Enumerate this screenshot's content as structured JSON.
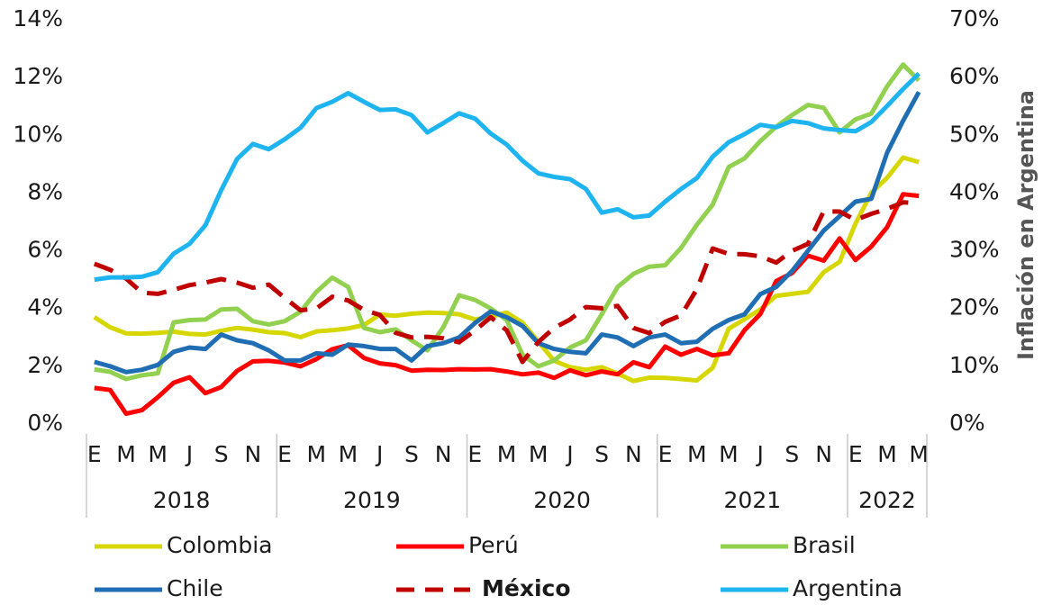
{
  "chart_data": {
    "type": "line",
    "y2_label": "Inflación  en Argentina",
    "categories": [
      "E",
      null,
      "M",
      null,
      "M",
      null,
      "J",
      null,
      "S",
      null,
      "N",
      null,
      "E",
      null,
      "M",
      null,
      "M",
      null,
      "J",
      null,
      "S",
      null,
      "N",
      null,
      "E",
      null,
      "M",
      null,
      "M",
      null,
      "J",
      null,
      "S",
      null,
      "N",
      null,
      "E",
      null,
      "M",
      null,
      "M",
      null,
      "J",
      null,
      "S",
      null,
      "N",
      null,
      "E",
      null,
      "M",
      null,
      "M"
    ],
    "category_groups": [
      "2018",
      "2019",
      "2020",
      "2021",
      "2022"
    ],
    "ylim": [
      0,
      14
    ],
    "yticks": [
      {
        "value": 0,
        "label": "0%"
      },
      {
        "value": 2,
        "label": "2%"
      },
      {
        "value": 4,
        "label": "4%"
      },
      {
        "value": 6,
        "label": "6%"
      },
      {
        "value": 8,
        "label": "8%"
      },
      {
        "value": 10,
        "label": "10%"
      },
      {
        "value": 12,
        "label": "12%"
      },
      {
        "value": 14,
        "label": "14%"
      }
    ],
    "y2lim": [
      0,
      70
    ],
    "y2ticks": [
      {
        "value": 0,
        "label": "0%"
      },
      {
        "value": 10,
        "label": "10%"
      },
      {
        "value": 20,
        "label": "20%"
      },
      {
        "value": 30,
        "label": "30%"
      },
      {
        "value": 40,
        "label": "40%"
      },
      {
        "value": 50,
        "label": "50%"
      },
      {
        "value": 60,
        "label": "60%"
      },
      {
        "value": 70,
        "label": "70%"
      }
    ],
    "grid": false,
    "legend": "bottom",
    "series": [
      {
        "name": "Colombia",
        "color": "#d6d600",
        "line_style": "solid",
        "values": [
          3.7,
          3.35,
          3.14,
          3.13,
          3.16,
          3.2,
          3.12,
          3.1,
          3.23,
          3.33,
          3.27,
          3.18,
          3.15,
          3.01,
          3.21,
          3.25,
          3.31,
          3.43,
          3.79,
          3.75,
          3.82,
          3.86,
          3.84,
          3.8,
          3.62,
          3.72,
          3.86,
          3.51,
          2.85,
          2.19,
          1.97,
          1.88,
          1.97,
          1.75,
          1.49,
          1.61,
          1.6,
          1.56,
          1.51,
          1.95,
          3.3,
          3.63,
          3.97,
          4.44,
          4.51,
          4.58,
          5.26,
          5.62,
          6.94,
          8.01,
          8.53,
          9.23,
          9.07
        ]
      },
      {
        "name": "Perú",
        "color": "#ff0000",
        "line_style": "solid",
        "values": [
          1.25,
          1.18,
          0.36,
          0.48,
          0.93,
          1.43,
          1.62,
          1.07,
          1.28,
          1.84,
          2.17,
          2.19,
          2.13,
          2.0,
          2.25,
          2.59,
          2.73,
          2.29,
          2.1,
          2.04,
          1.85,
          1.88,
          1.87,
          1.9,
          1.89,
          1.9,
          1.82,
          1.72,
          1.78,
          1.6,
          1.86,
          1.69,
          1.82,
          1.72,
          2.14,
          1.97,
          2.68,
          2.4,
          2.6,
          2.38,
          2.45,
          3.25,
          3.81,
          4.95,
          5.23,
          5.83,
          5.66,
          6.43,
          5.68,
          6.15,
          6.82,
          7.96,
          7.9
        ]
      },
      {
        "name": "Brasil",
        "color": "#92d050",
        "line_style": "solid",
        "values": [
          1.89,
          1.81,
          1.56,
          1.69,
          1.76,
          3.52,
          3.6,
          3.62,
          3.97,
          3.99,
          3.56,
          3.45,
          3.56,
          3.89,
          4.58,
          5.07,
          4.75,
          3.33,
          3.18,
          3.28,
          2.9,
          2.55,
          3.35,
          4.46,
          4.3,
          4.0,
          3.6,
          2.4,
          2.0,
          2.2,
          2.65,
          2.9,
          3.8,
          4.75,
          5.2,
          5.45,
          5.5,
          6.1,
          6.9,
          7.6,
          8.9,
          9.2,
          9.8,
          10.3,
          10.7,
          11.05,
          10.95,
          10.1,
          10.55,
          10.75,
          11.7,
          12.45,
          11.9
        ]
      },
      {
        "name": "Chile",
        "color": "#1f6db3",
        "line_style": "solid",
        "values": [
          2.15,
          2.0,
          1.8,
          1.88,
          2.05,
          2.5,
          2.65,
          2.6,
          3.1,
          2.9,
          2.8,
          2.55,
          2.2,
          2.2,
          2.45,
          2.4,
          2.75,
          2.7,
          2.6,
          2.6,
          2.2,
          2.7,
          2.8,
          3.0,
          3.5,
          3.9,
          3.7,
          3.4,
          2.8,
          2.6,
          2.5,
          2.45,
          3.1,
          3.0,
          2.7,
          3.0,
          3.1,
          2.8,
          2.85,
          3.3,
          3.6,
          3.8,
          4.5,
          4.75,
          5.3,
          6.0,
          6.7,
          7.2,
          7.7,
          7.8,
          9.4,
          10.5,
          11.5
        ]
      },
      {
        "name": "México",
        "color": "#c00000",
        "line_style": "dashed",
        "legend_bold": true,
        "values": [
          5.55,
          5.34,
          5.04,
          4.55,
          4.51,
          4.65,
          4.81,
          4.9,
          5.02,
          4.9,
          4.72,
          4.83,
          4.37,
          3.94,
          4.0,
          4.41,
          4.28,
          3.95,
          3.78,
          3.16,
          3.0,
          3.02,
          2.97,
          2.83,
          3.24,
          3.7,
          3.25,
          2.15,
          2.84,
          3.33,
          3.62,
          4.05,
          4.01,
          4.09,
          3.33,
          3.15,
          3.54,
          3.76,
          4.67,
          6.08,
          5.89,
          5.88,
          5.81,
          5.59,
          6.0,
          6.24,
          7.37,
          7.36,
          7.07,
          7.28,
          7.45,
          7.68,
          7.65
        ]
      },
      {
        "name": "Argentina",
        "color": "#1eb4f0",
        "line_style": "solid",
        "axis": "y2",
        "values": [
          25,
          25.4,
          25.4,
          25.5,
          26.3,
          29.5,
          31.2,
          34.4,
          40.5,
          45.9,
          48.5,
          47.6,
          49.3,
          51.3,
          54.7,
          55.8,
          57.3,
          55.8,
          54.4,
          54.5,
          53.5,
          50.5,
          52.1,
          53.8,
          52.9,
          50.3,
          48.4,
          45.6,
          43.4,
          42.8,
          42.4,
          40.7,
          36.6,
          37.2,
          35.8,
          36.1,
          38.5,
          40.7,
          42.6,
          46.3,
          48.8,
          50.2,
          51.8,
          51.4,
          52.5,
          52.1,
          51.2,
          50.9,
          50.7,
          52.3,
          55.1,
          58.0,
          60.7
        ]
      }
    ]
  }
}
